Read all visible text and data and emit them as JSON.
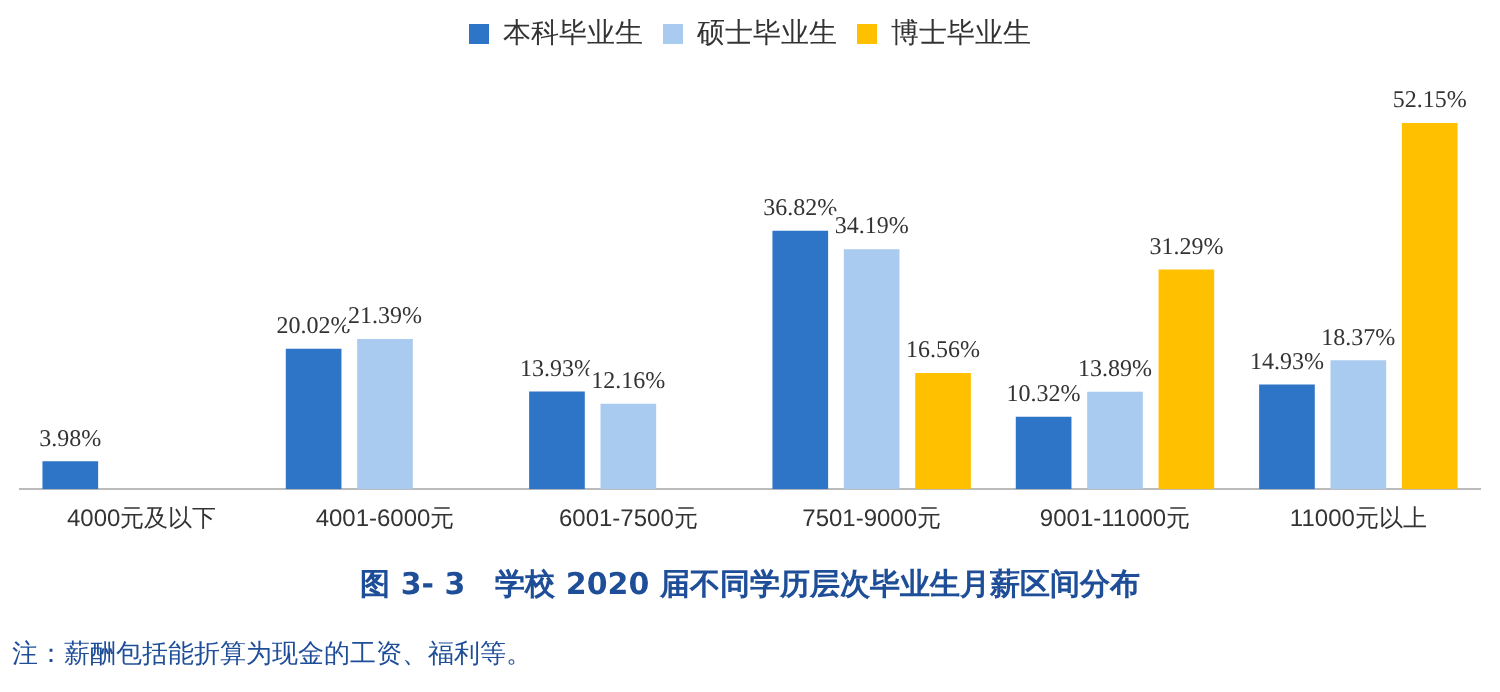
{
  "chart_data": {
    "type": "bar",
    "title": "图 3- 3　学校 2020 届不同学历层次毕业生月薪区间分布",
    "categories": [
      "4000元及以下",
      "4001-6000元",
      "6001-7500元",
      "7501-9000元",
      "9001-11000元",
      "11000元以上"
    ],
    "series": [
      {
        "name": "本科毕业生",
        "color": "#2e75c8",
        "values": [
          3.98,
          20.02,
          13.93,
          36.82,
          10.32,
          14.93
        ],
        "value_labels": [
          "3.98%",
          "20.02%",
          "13.93%",
          "36.82%",
          "10.32%",
          "14.93%"
        ]
      },
      {
        "name": "硕士毕业生",
        "color": "#a9cbef",
        "values": [
          null,
          21.39,
          12.16,
          34.19,
          13.89,
          18.37
        ],
        "value_labels": [
          null,
          "21.39%",
          "12.16%",
          "34.19%",
          "13.89%",
          "18.37%"
        ]
      },
      {
        "name": "博士毕业生",
        "color": "#ffc000",
        "values": [
          null,
          null,
          null,
          16.56,
          31.29,
          52.15
        ],
        "value_labels": [
          null,
          null,
          null,
          "16.56%",
          "31.29%",
          "52.15%"
        ]
      }
    ],
    "legend": "top",
    "grid": false,
    "annotations": [
      "注：薪酬包括能折算为现金的工资、福利等。"
    ]
  }
}
